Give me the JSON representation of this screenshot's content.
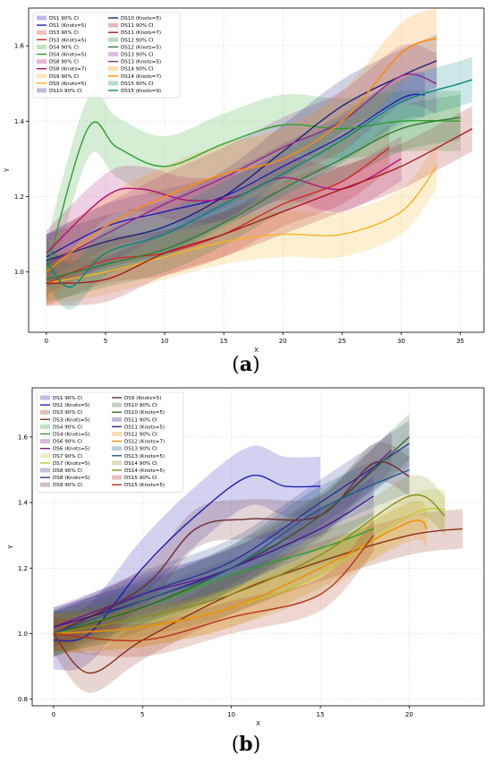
{
  "figure": {
    "captions": [
      {
        "paren_open": "(",
        "letter": "a",
        "paren_close": ")"
      },
      {
        "paren_open": "(",
        "letter": "b",
        "paren_close": ")"
      }
    ]
  },
  "chart_data": [
    {
      "type": "line",
      "panel_label": "a",
      "xlabel": "X",
      "ylabel": "Y",
      "xlim": [
        -1.5,
        37
      ],
      "ylim": [
        0.84,
        1.7
      ],
      "xticks": [
        0,
        5,
        10,
        15,
        20,
        25,
        30,
        35
      ],
      "yticks": [
        1.0,
        1.2,
        1.4,
        1.6
      ],
      "ytick_labels": [
        "1.0",
        "1.2",
        "1.4",
        "1.6"
      ],
      "legend_position": "top-left",
      "legend_columns": 2,
      "legend_entries": [
        "DS1 90% CI",
        "DS1 (Knots=5)",
        "DS3 90% CI",
        "DS3 (Knots=5)",
        "DS4 90% CI",
        "DS4 (Knots=5)",
        "DS8 90% CI",
        "DS8 (Knots=7)",
        "DS9 90% CI",
        "DS9 (Knots=5)",
        "DS10 90% CI",
        "DS10 (Knots=5)",
        "DS11 90% CI",
        "DS11 (Knots=7)",
        "DS12 90% CI",
        "DS12 (Knots=5)",
        "DS13 90% CI",
        "DS13 (Knots=5)",
        "DS14 90% CI",
        "DS14 (Knots=7)",
        "DS15 90% CI",
        "DS15 (Knots=9)"
      ],
      "series": [
        {
          "name": "DS1 (Knots=5)",
          "color": "#1f1fb4",
          "x": [
            0,
            5,
            10,
            15,
            20,
            25,
            30,
            32
          ],
          "y": [
            1.04,
            1.12,
            1.16,
            1.2,
            1.28,
            1.36,
            1.46,
            1.47
          ],
          "ci": 0.06
        },
        {
          "name": "DS3 (Knots=5)",
          "color": "#d62728",
          "x": [
            0,
            5,
            10,
            15,
            20,
            25,
            29
          ],
          "y": [
            0.97,
            1.03,
            1.05,
            1.1,
            1.18,
            1.24,
            1.33
          ],
          "ci": 0.06
        },
        {
          "name": "DS4 (Knots=5)",
          "color": "#2ca02c",
          "x": [
            0,
            3.5,
            6,
            10,
            15,
            20,
            25,
            30,
            35
          ],
          "y": [
            1.0,
            1.38,
            1.33,
            1.28,
            1.34,
            1.39,
            1.38,
            1.4,
            1.4
          ],
          "ci": 0.08
        },
        {
          "name": "DS8 (Knots=7)",
          "color": "#b0127a",
          "x": [
            0,
            5,
            8,
            12,
            16,
            20,
            25,
            30
          ],
          "y": [
            1.05,
            1.2,
            1.22,
            1.19,
            1.2,
            1.25,
            1.22,
            1.3
          ],
          "ci": 0.06
        },
        {
          "name": "DS9 (Knots=5)",
          "color": "#f7b21e",
          "x": [
            0,
            5,
            10,
            15,
            20,
            25,
            30,
            33
          ],
          "y": [
            0.97,
            1.0,
            1.04,
            1.08,
            1.1,
            1.1,
            1.16,
            1.28
          ],
          "ci": 0.06
        },
        {
          "name": "DS10 (Knots=5)",
          "color": "#1a237e",
          "x": [
            0,
            5,
            10,
            15,
            20,
            25,
            30,
            33
          ],
          "y": [
            1.03,
            1.08,
            1.12,
            1.2,
            1.32,
            1.44,
            1.52,
            1.56
          ],
          "ci": 0.07
        },
        {
          "name": "DS11 (Knots=7)",
          "color": "#a61b1b",
          "x": [
            0,
            5,
            10,
            15,
            20,
            25,
            30,
            36
          ],
          "y": [
            0.97,
            0.98,
            1.05,
            1.1,
            1.16,
            1.22,
            1.28,
            1.38
          ],
          "ci": 0.06
        },
        {
          "name": "DS12 (Knots=5)",
          "color": "#2e7d32",
          "x": [
            0,
            5,
            10,
            15,
            20,
            25,
            30,
            35
          ],
          "y": [
            0.98,
            1.02,
            1.06,
            1.13,
            1.22,
            1.3,
            1.38,
            1.41
          ],
          "ci": 0.06
        },
        {
          "name": "DS13 (Knots=5)",
          "color": "#8e2a8e",
          "x": [
            0,
            5,
            10,
            15,
            20,
            25,
            30,
            33
          ],
          "y": [
            1.02,
            1.1,
            1.18,
            1.25,
            1.33,
            1.4,
            1.52,
            1.5
          ],
          "ci": 0.08
        },
        {
          "name": "DS14 (Knots=7)",
          "color": "#ff8c00",
          "x": [
            0,
            5,
            10,
            15,
            20,
            25,
            30,
            33
          ],
          "y": [
            1.0,
            1.12,
            1.2,
            1.26,
            1.3,
            1.4,
            1.58,
            1.62
          ],
          "ci": 0.08
        },
        {
          "name": "DS15 (Knots=9)",
          "color": "#00897b",
          "x": [
            0,
            2,
            5,
            10,
            15,
            20,
            25,
            30,
            35,
            36
          ],
          "y": [
            1.03,
            0.96,
            1.05,
            1.1,
            1.18,
            1.26,
            1.35,
            1.45,
            1.5,
            1.51
          ],
          "ci": 0.06
        }
      ]
    },
    {
      "type": "line",
      "panel_label": "b",
      "xlabel": "X",
      "ylabel": "Y",
      "xlim": [
        -1.2,
        24.2
      ],
      "ylim": [
        0.78,
        1.75
      ],
      "xticks": [
        0,
        5,
        10,
        15,
        20
      ],
      "yticks": [
        0.8,
        1.0,
        1.2,
        1.4,
        1.6
      ],
      "ytick_labels": [
        "0.8",
        "1.0",
        "1.2",
        "1.4",
        "1.6"
      ],
      "legend_position": "top-left",
      "legend_columns": 2,
      "legend_entries": [
        "DS1 90% CI",
        "DS1 (Knots=5)",
        "DS3 90% CI",
        "DS3 (Knots=5)",
        "DS4 90% CI",
        "DS4 (Knots=5)",
        "DS6 90% CI",
        "DS6 (Knots=5)",
        "DS7 90% CI",
        "DS7 (Knots=5)",
        "DS8 90% CI",
        "DS8 (Knots=5)",
        "DS9 90% CI",
        "DS9 (Knots=5)",
        "DS10 90% CI",
        "DS10 (Knots=5)",
        "DS11 90% CI",
        "DS11 (Knots=5)",
        "DS12 90% CI",
        "DS12 (Knots=7)",
        "DS13 90% CI",
        "DS13 (Knots=5)",
        "DS14 90% CI",
        "DS14 (Knots=5)",
        "DS15 90% CI",
        "DS15 (Knots=5)"
      ],
      "series": [
        {
          "name": "DS1 (Knots=5)",
          "color": "#1f1fb4",
          "x": [
            0,
            2,
            5,
            8,
            11,
            13,
            15
          ],
          "y": [
            0.98,
            1.0,
            1.2,
            1.36,
            1.48,
            1.45,
            1.45
          ],
          "ci": 0.09
        },
        {
          "name": "DS3 (Knots=5)",
          "color": "#8b2e1a",
          "x": [
            0,
            2,
            5,
            10,
            15,
            20,
            23
          ],
          "y": [
            1.0,
            0.88,
            0.98,
            1.12,
            1.22,
            1.3,
            1.32
          ],
          "ci": 0.06
        },
        {
          "name": "DS4 (Knots=5)",
          "color": "#2ca02c",
          "x": [
            0,
            5,
            10,
            15,
            18
          ],
          "y": [
            1.0,
            1.08,
            1.18,
            1.26,
            1.32
          ],
          "ci": 0.05
        },
        {
          "name": "DS6 (Knots=5)",
          "color": "#6a1b9a",
          "x": [
            0,
            5,
            10,
            15,
            19
          ],
          "y": [
            1.02,
            1.12,
            1.2,
            1.36,
            1.56
          ],
          "ci": 0.06
        },
        {
          "name": "DS7 (Knots=5)",
          "color": "#c0ca33",
          "x": [
            0,
            5,
            10,
            15,
            20,
            22
          ],
          "y": [
            1.0,
            1.02,
            1.08,
            1.18,
            1.36,
            1.38
          ],
          "ci": 0.06
        },
        {
          "name": "DS8 (Knots=5)",
          "color": "#283593",
          "x": [
            0,
            5,
            10,
            15,
            20
          ],
          "y": [
            1.0,
            1.12,
            1.22,
            1.4,
            1.58
          ],
          "ci": 0.07
        },
        {
          "name": "DS9 (Knots=5)",
          "color": "#6d2c2c",
          "x": [
            0,
            5,
            8,
            11,
            15,
            18,
            20
          ],
          "y": [
            1.0,
            1.14,
            1.32,
            1.35,
            1.36,
            1.52,
            1.48
          ],
          "ci": 0.06
        },
        {
          "name": "DS10 (Knots=5)",
          "color": "#33691e",
          "x": [
            0,
            5,
            10,
            15,
            20
          ],
          "y": [
            1.0,
            1.08,
            1.2,
            1.36,
            1.6
          ],
          "ci": 0.07
        },
        {
          "name": "DS11 (Knots=5)",
          "color": "#4a148c",
          "x": [
            0,
            5,
            10,
            15,
            18
          ],
          "y": [
            1.02,
            1.1,
            1.2,
            1.32,
            1.42
          ],
          "ci": 0.06
        },
        {
          "name": "DS12 (Knots=7)",
          "color": "#ef8c00",
          "x": [
            0,
            5,
            10,
            15,
            20,
            21
          ],
          "y": [
            1.0,
            1.02,
            1.08,
            1.2,
            1.34,
            1.32
          ],
          "ci": 0.06
        },
        {
          "name": "DS13 (Knots=5)",
          "color": "#1e5a8a",
          "x": [
            0,
            5,
            10,
            15,
            20
          ],
          "y": [
            1.0,
            1.1,
            1.2,
            1.38,
            1.5
          ],
          "ci": 0.07
        },
        {
          "name": "DS14 (Knots=5)",
          "color": "#8c8c1a",
          "x": [
            0,
            5,
            10,
            15,
            20,
            22
          ],
          "y": [
            1.0,
            1.05,
            1.12,
            1.24,
            1.42,
            1.36
          ],
          "ci": 0.06
        },
        {
          "name": "DS15 (Knots=5)",
          "color": "#b5331b",
          "x": [
            0,
            5,
            10,
            15,
            18
          ],
          "y": [
            1.0,
            0.98,
            1.05,
            1.12,
            1.3
          ],
          "ci": 0.05
        }
      ]
    }
  ]
}
